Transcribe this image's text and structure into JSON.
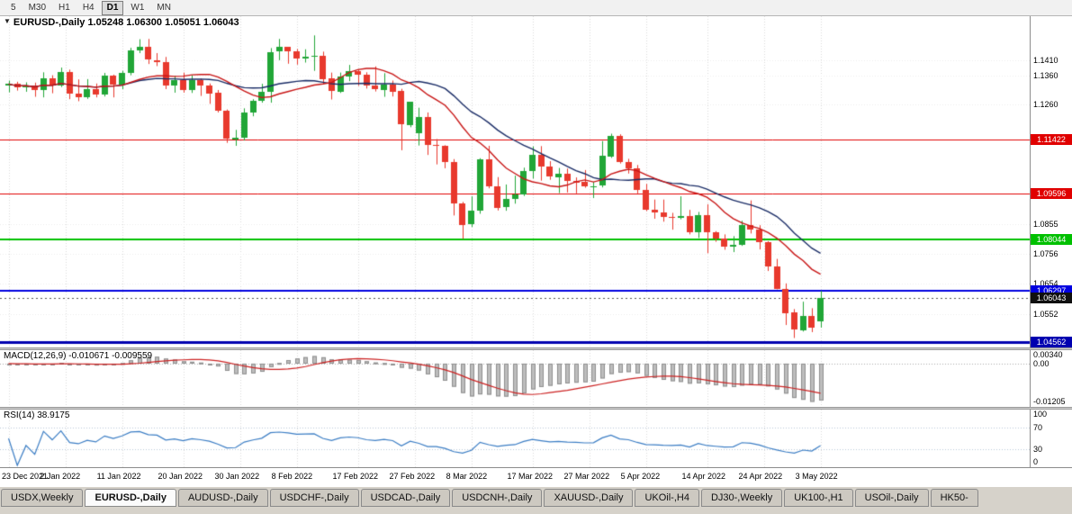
{
  "toolbar": {
    "timeframes": [
      {
        "label": "5",
        "active": false
      },
      {
        "label": "M30",
        "active": false
      },
      {
        "label": "H1",
        "active": false
      },
      {
        "label": "H4",
        "active": false
      },
      {
        "label": "D1",
        "active": true
      },
      {
        "label": "W1",
        "active": false
      },
      {
        "label": "MN",
        "active": false
      }
    ]
  },
  "chart_data": {
    "type": "candlestick",
    "symbol": "EURUSD-",
    "timeframe": "Daily",
    "header_text": "EURUSD-,Daily 1.05248 1.06300 1.05051 1.06043",
    "ohlc": {
      "open": "1.05248",
      "high": "1.06300",
      "low": "1.05051",
      "close": "1.06043"
    },
    "ylim": [
      1.0438,
      1.156
    ],
    "y_ticks": [
      {
        "v": 1.141,
        "label": "1.1410"
      },
      {
        "v": 1.136,
        "label": "1.1360"
      },
      {
        "v": 1.126,
        "label": "1.1260"
      },
      {
        "v": 1.0855,
        "label": "1.0855"
      },
      {
        "v": 1.0756,
        "label": "1.0756"
      },
      {
        "v": 1.0654,
        "label": "1.0654"
      },
      {
        "v": 1.0552,
        "label": "1.0552"
      }
    ],
    "hlines": [
      {
        "price": 1.11422,
        "label": "1.11422",
        "color": "#e00000",
        "line_width": 1
      },
      {
        "price": 1.09596,
        "label": "1.09596",
        "color": "#e00000",
        "line_width": 1
      },
      {
        "price": 1.08044,
        "label": "1.08044",
        "color": "#00c000",
        "line_width": 2
      },
      {
        "price": 1.06297,
        "label": "1.06297",
        "color": "#0000e0",
        "line_width": 2
      },
      {
        "price": 1.04562,
        "label": "1.04562",
        "color": "#0000b0",
        "line_width": 3
      }
    ],
    "current_price": {
      "value": 1.06043,
      "label": "1.06043",
      "badge_color": "#101010"
    },
    "x_ticks": [
      {
        "label": "23 Dec 2021",
        "index": 0
      },
      {
        "label": "2 Jan 2022",
        "index": 6.5
      },
      {
        "label": "11 Jan 2022",
        "index": 13
      },
      {
        "label": "20 Jan 2022",
        "index": 20
      },
      {
        "label": "30 Jan 2022",
        "index": 26.5
      },
      {
        "label": "8 Feb 2022",
        "index": 33
      },
      {
        "label": "17 Feb 2022",
        "index": 40
      },
      {
        "label": "27 Feb 2022",
        "index": 46.5
      },
      {
        "label": "8 Mar 2022",
        "index": 53
      },
      {
        "label": "17 Mar 2022",
        "index": 60
      },
      {
        "label": "27 Mar 2022",
        "index": 66.5
      },
      {
        "label": "5 Apr 2022",
        "index": 73
      },
      {
        "label": "14 Apr 2022",
        "index": 80
      },
      {
        "label": "24 Apr 2022",
        "index": 86.5
      },
      {
        "label": "3 May 2022",
        "index": 93
      }
    ],
    "moving_averages": [
      {
        "name": "slow-ma",
        "type": "sma",
        "period": 21,
        "color": "#1a2c66"
      },
      {
        "name": "fast-ma",
        "type": "sma",
        "period": 13,
        "color": "#c81616"
      }
    ],
    "candles": [
      [
        "23 Dec 2021",
        1.1325,
        1.1342,
        1.1302,
        1.133
      ],
      [
        "24 Dec 2021",
        1.133,
        1.1338,
        1.1308,
        1.1318
      ],
      [
        "27 Dec 2021",
        1.1318,
        1.1336,
        1.1304,
        1.1325
      ],
      [
        "28 Dec 2021",
        1.1325,
        1.1335,
        1.1287,
        1.131
      ],
      [
        "29 Dec 2021",
        1.131,
        1.137,
        1.1285,
        1.1349
      ],
      [
        "30 Dec 2021",
        1.1349,
        1.136,
        1.1299,
        1.1325
      ],
      [
        "31 Dec 2021",
        1.1325,
        1.1386,
        1.132,
        1.137
      ],
      [
        "3 Jan 2022",
        1.137,
        1.1379,
        1.1279,
        1.1297
      ],
      [
        "4 Jan 2022",
        1.1297,
        1.1346,
        1.1272,
        1.1285
      ],
      [
        "5 Jan 2022",
        1.1285,
        1.1347,
        1.128,
        1.1312
      ],
      [
        "6 Jan 2022",
        1.1312,
        1.1332,
        1.1285,
        1.1295
      ],
      [
        "7 Jan 2022",
        1.1295,
        1.1368,
        1.1288,
        1.136
      ],
      [
        "10 Jan 2022",
        1.136,
        1.1362,
        1.1285,
        1.1328
      ],
      [
        "11 Jan 2022",
        1.1328,
        1.1375,
        1.1313,
        1.1367
      ],
      [
        "12 Jan 2022",
        1.1367,
        1.1453,
        1.136,
        1.1444
      ],
      [
        "13 Jan 2022",
        1.1444,
        1.1482,
        1.1435,
        1.1455
      ],
      [
        "14 Jan 2022",
        1.1455,
        1.1483,
        1.1398,
        1.1412
      ],
      [
        "17 Jan 2022",
        1.1412,
        1.1435,
        1.1391,
        1.1405
      ],
      [
        "18 Jan 2022",
        1.1405,
        1.1422,
        1.1313,
        1.1325
      ],
      [
        "19 Jan 2022",
        1.1325,
        1.1358,
        1.1301,
        1.1343
      ],
      [
        "20 Jan 2022",
        1.1343,
        1.1369,
        1.1301,
        1.131
      ],
      [
        "21 Jan 2022",
        1.131,
        1.136,
        1.13,
        1.1344
      ],
      [
        "24 Jan 2022",
        1.1344,
        1.1349,
        1.129,
        1.1326
      ],
      [
        "25 Jan 2022",
        1.1326,
        1.1332,
        1.1263,
        1.13
      ],
      [
        "26 Jan 2022",
        1.13,
        1.131,
        1.1234,
        1.124
      ],
      [
        "27 Jan 2022",
        1.124,
        1.1244,
        1.1131,
        1.1144
      ],
      [
        "28 Jan 2022",
        1.1144,
        1.1175,
        1.1121,
        1.1149
      ],
      [
        "31 Jan 2022",
        1.1149,
        1.1248,
        1.1139,
        1.1234
      ],
      [
        "1 Feb 2022",
        1.1234,
        1.1279,
        1.1221,
        1.1273
      ],
      [
        "2 Feb 2022",
        1.1273,
        1.1331,
        1.1267,
        1.1305
      ],
      [
        "3 Feb 2022",
        1.1305,
        1.1452,
        1.1267,
        1.1439
      ],
      [
        "4 Feb 2022",
        1.1439,
        1.1483,
        1.1411,
        1.1455
      ],
      [
        "7 Feb 2022",
        1.1455,
        1.1456,
        1.1399,
        1.1441
      ],
      [
        "8 Feb 2022",
        1.1441,
        1.1449,
        1.1396,
        1.1417
      ],
      [
        "9 Feb 2022",
        1.1417,
        1.1448,
        1.1403,
        1.1424
      ],
      [
        "10 Feb 2022",
        1.1424,
        1.1495,
        1.1375,
        1.1427
      ],
      [
        "11 Feb 2022",
        1.1427,
        1.144,
        1.133,
        1.1349
      ],
      [
        "14 Feb 2022",
        1.1349,
        1.1369,
        1.1278,
        1.1305
      ],
      [
        "15 Feb 2022",
        1.1305,
        1.1369,
        1.13,
        1.1357
      ],
      [
        "16 Feb 2022",
        1.1357,
        1.1395,
        1.134,
        1.1374
      ],
      [
        "17 Feb 2022",
        1.1374,
        1.1379,
        1.1324,
        1.1362
      ],
      [
        "18 Feb 2022",
        1.1362,
        1.137,
        1.1315,
        1.1324
      ],
      [
        "21 Feb 2022",
        1.1324,
        1.139,
        1.1305,
        1.1311
      ],
      [
        "22 Feb 2022",
        1.1311,
        1.1367,
        1.1287,
        1.1329
      ],
      [
        "23 Feb 2022",
        1.1329,
        1.1342,
        1.1288,
        1.1306
      ],
      [
        "24 Feb 2022",
        1.1306,
        1.1314,
        1.1106,
        1.1192
      ],
      [
        "25 Feb 2022",
        1.1192,
        1.127,
        1.1184,
        1.127
      ],
      [
        "28 Feb 2022",
        1.1165,
        1.125,
        1.1122,
        1.1219
      ],
      [
        "1 Mar 2022",
        1.1219,
        1.1234,
        1.109,
        1.1125
      ],
      [
        "2 Mar 2022",
        1.1125,
        1.1144,
        1.1058,
        1.1122
      ],
      [
        "3 Mar 2022",
        1.1122,
        1.1123,
        1.1045,
        1.1066
      ],
      [
        "4 Mar 2022",
        1.1066,
        1.1076,
        1.0885,
        1.0927
      ],
      [
        "7 Mar 2022",
        1.0927,
        1.0931,
        1.0806,
        1.0854
      ],
      [
        "8 Mar 2022",
        1.0854,
        1.095,
        1.0846,
        1.0901
      ],
      [
        "9 Mar 2022",
        1.0901,
        1.1079,
        1.0891,
        1.1076
      ],
      [
        "10 Mar 2022",
        1.1076,
        1.1121,
        1.0977,
        1.0985
      ],
      [
        "11 Mar 2022",
        1.0985,
        1.1015,
        1.0902,
        1.0913
      ],
      [
        "14 Mar 2022",
        1.0913,
        1.099,
        1.0901,
        1.094
      ],
      [
        "15 Mar 2022",
        1.094,
        1.102,
        1.0925,
        1.0955
      ],
      [
        "16 Mar 2022",
        1.0955,
        1.1047,
        1.0951,
        1.1035
      ],
      [
        "17 Mar 2022",
        1.1035,
        1.1119,
        1.101,
        1.109
      ],
      [
        "18 Mar 2022",
        1.109,
        1.112,
        1.1003,
        1.1051
      ],
      [
        "21 Mar 2022",
        1.1051,
        1.1069,
        1.1006,
        1.1016
      ],
      [
        "22 Mar 2022",
        1.1016,
        1.1046,
        1.0961,
        1.1027
      ],
      [
        "23 Mar 2022",
        1.1027,
        1.1044,
        1.0963,
        1.1003
      ],
      [
        "24 Mar 2022",
        1.1003,
        1.1014,
        1.096,
        1.0998
      ],
      [
        "25 Mar 2022",
        1.0998,
        1.1039,
        1.0979,
        1.0983
      ],
      [
        "28 Mar 2022",
        1.0983,
        1.0999,
        1.0944,
        1.0985
      ],
      [
        "29 Mar 2022",
        1.0985,
        1.1137,
        1.098,
        1.1087
      ],
      [
        "30 Mar 2022",
        1.1087,
        1.1162,
        1.108,
        1.1156
      ],
      [
        "31 Mar 2022",
        1.1156,
        1.116,
        1.1061,
        1.1067
      ],
      [
        "1 Apr 2022",
        1.1067,
        1.1077,
        1.1027,
        1.1045
      ],
      [
        "4 Apr 2022",
        1.1045,
        1.1056,
        1.096,
        1.0972
      ],
      [
        "5 Apr 2022",
        1.0972,
        1.0992,
        1.09,
        1.0905
      ],
      [
        "6 Apr 2022",
        1.0905,
        1.0939,
        1.0874,
        1.0895
      ],
      [
        "7 Apr 2022",
        1.0895,
        1.0939,
        1.0864,
        1.0879
      ],
      [
        "8 Apr 2022",
        1.0879,
        1.0894,
        1.0837,
        1.0876
      ],
      [
        "11 Apr 2022",
        1.0876,
        1.095,
        1.0872,
        1.0882
      ],
      [
        "12 Apr 2022",
        1.0882,
        1.0904,
        1.0821,
        1.0827
      ],
      [
        "13 Apr 2022",
        1.0827,
        1.0897,
        1.0809,
        1.0886
      ],
      [
        "14 Apr 2022",
        1.0886,
        1.0923,
        1.0757,
        1.0828
      ],
      [
        "15 Apr 2022",
        1.0828,
        1.0832,
        1.0796,
        1.0807
      ],
      [
        "18 Apr 2022",
        1.0807,
        1.0821,
        1.0769,
        1.0781
      ],
      [
        "19 Apr 2022",
        1.0781,
        1.0815,
        1.0761,
        1.0786
      ],
      [
        "20 Apr 2022",
        1.0786,
        1.0867,
        1.0782,
        1.0852
      ],
      [
        "21 Apr 2022",
        1.0852,
        1.0936,
        1.0824,
        1.0838
      ],
      [
        "22 Apr 2022",
        1.0838,
        1.0852,
        1.077,
        1.0795
      ],
      [
        "25 Apr 2022",
        1.0795,
        1.0798,
        1.0697,
        1.0712
      ],
      [
        "26 Apr 2022",
        1.0712,
        1.0738,
        1.0635,
        1.0637
      ],
      [
        "27 Apr 2022",
        1.0637,
        1.0655,
        1.0514,
        1.0556
      ],
      [
        "28 Apr 2022",
        1.0556,
        1.0568,
        1.047,
        1.0497
      ],
      [
        "29 Apr 2022",
        1.0497,
        1.0593,
        1.0492,
        1.0545
      ],
      [
        "2 May 2022",
        1.0545,
        1.0571,
        1.049,
        1.0505
      ],
      [
        "3 May 2022",
        1.05248,
        1.063,
        1.05051,
        1.06043
      ]
    ],
    "macd": {
      "header_text": "MACD(12,26,9) -0.010671 -0.009559",
      "fast": 12,
      "slow": 26,
      "signal": 9,
      "main_value": "-0.010671",
      "signal_value": "-0.009559",
      "ylim": [
        -0.0138,
        0.0043
      ],
      "y_ticks": [
        {
          "v": 0.0034,
          "label": "0.00340"
        },
        {
          "v": 0,
          "label": "0.00"
        },
        {
          "v": -0.01205,
          "label": "-0.01205"
        }
      ],
      "histogram_color": "#bdbdbd",
      "signal_color": "#cc2222"
    },
    "rsi": {
      "header_text": "RSI(14) 38.9175",
      "period": 14,
      "value": "38.9175",
      "ylim": [
        0,
        100
      ],
      "levels": [
        70,
        30
      ],
      "y_ticks": [
        {
          "v": 100,
          "label": "100"
        },
        {
          "v": 70,
          "label": "70"
        },
        {
          "v": 30,
          "label": "30"
        },
        {
          "v": 0,
          "label": "0"
        }
      ],
      "line_color": "#3b7dc4"
    },
    "colors": {
      "up": "#21a637",
      "down": "#e8392d",
      "background": "#ffffff",
      "grid": "#d9d9d9"
    }
  },
  "tabs": [
    {
      "label": "USDX,Weekly",
      "active": false
    },
    {
      "label": "EURUSD-,Daily",
      "active": true
    },
    {
      "label": "AUDUSD-,Daily",
      "active": false
    },
    {
      "label": "USDCHF-,Daily",
      "active": false
    },
    {
      "label": "USDCAD-,Daily",
      "active": false
    },
    {
      "label": "USDCNH-,Daily",
      "active": false
    },
    {
      "label": "XAUUSD-,Daily",
      "active": false
    },
    {
      "label": "UKOil-,H4",
      "active": false
    },
    {
      "label": "DJ30-,Weekly",
      "active": false
    },
    {
      "label": "UK100-,H1",
      "active": false
    },
    {
      "label": "USOil-,Daily",
      "active": false
    },
    {
      "label": "HK50-",
      "active": false
    }
  ]
}
